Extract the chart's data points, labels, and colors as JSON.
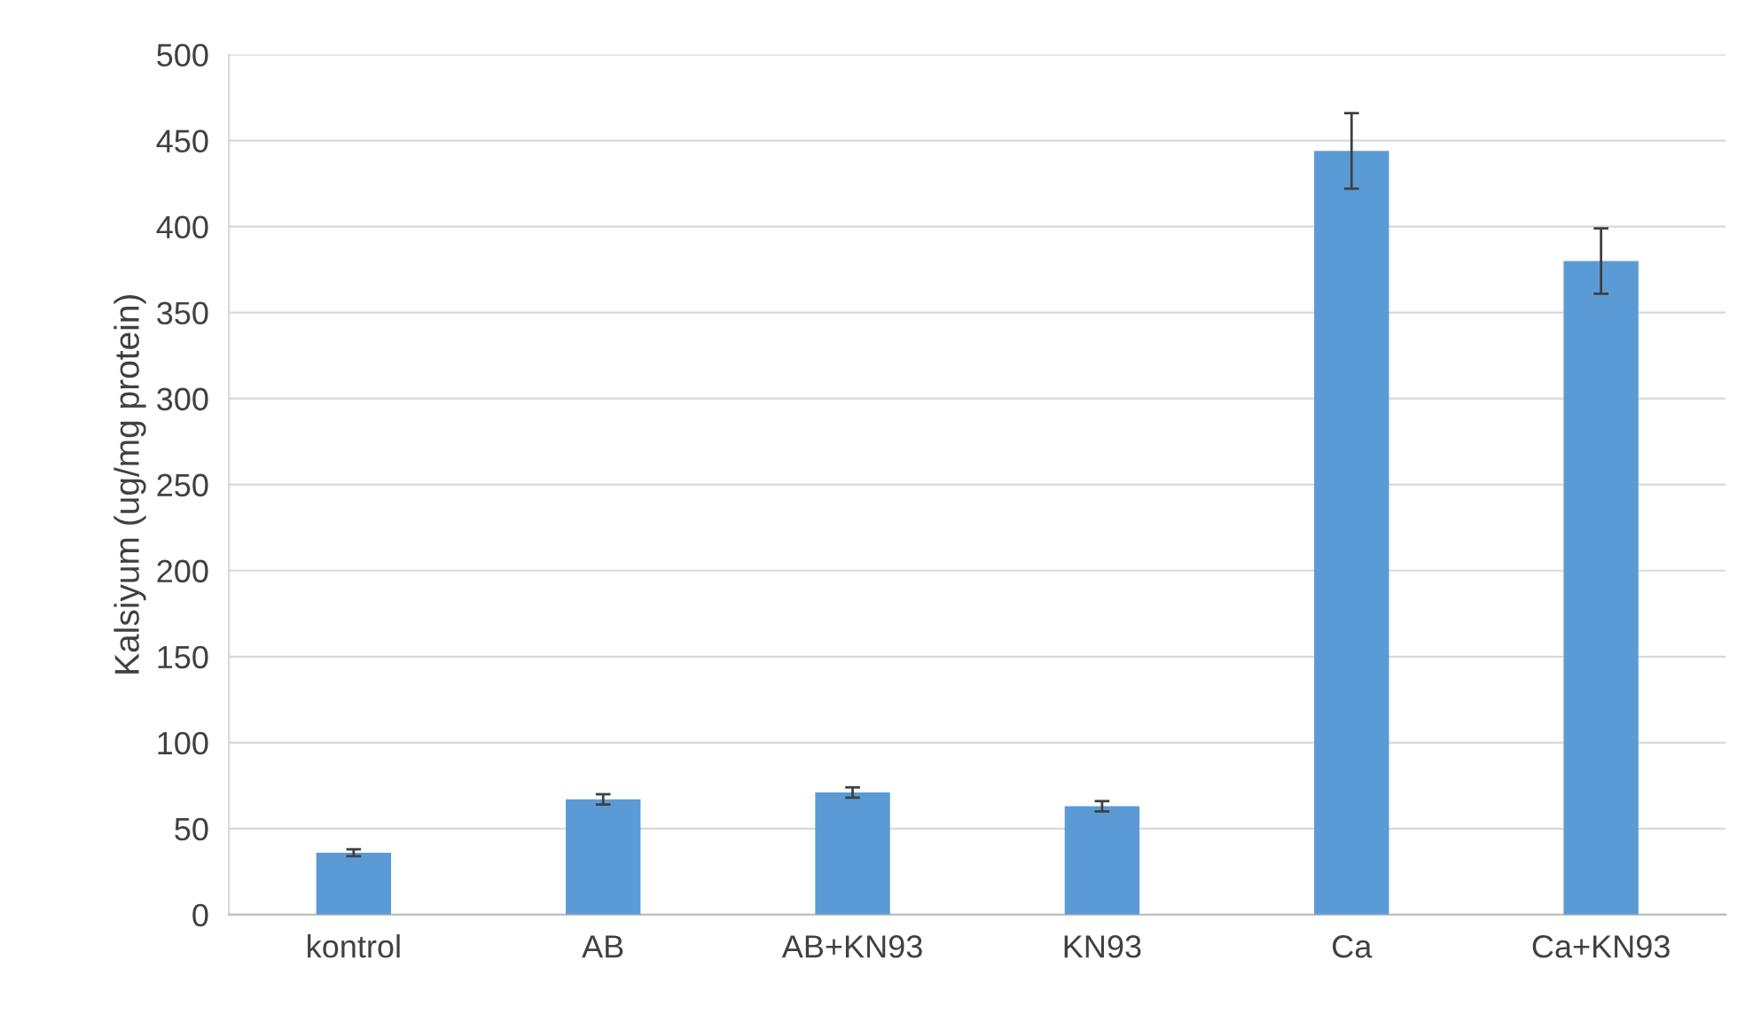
{
  "chart_data": {
    "type": "bar",
    "ylabel": "Kalsiyum (ug/mg protein)",
    "categories": [
      "kontrol",
      "AB",
      "AB+KN93",
      "KN93",
      "Ca",
      "Ca+KN93"
    ],
    "values": [
      36,
      67,
      71,
      63,
      444,
      380
    ],
    "errors": [
      2,
      3,
      3,
      3,
      22,
      19
    ],
    "color": "#5b9bd5",
    "ylim": [
      0,
      500
    ],
    "yticks": [
      0,
      50,
      100,
      150,
      200,
      250,
      300,
      350,
      400,
      450,
      500
    ],
    "grid": "y"
  }
}
